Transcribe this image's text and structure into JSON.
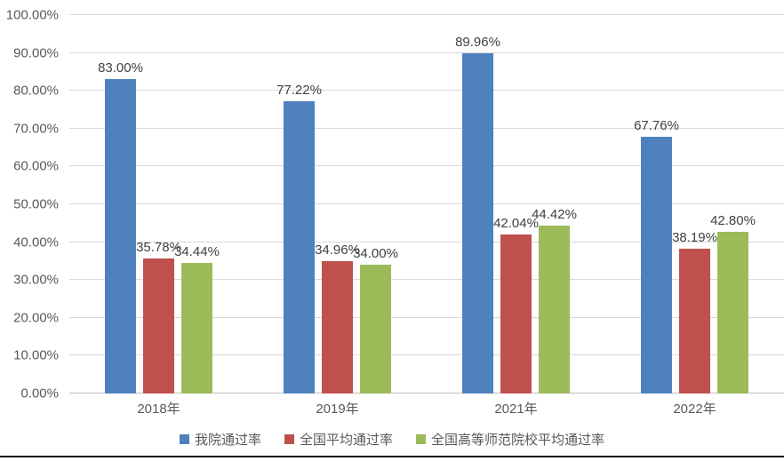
{
  "chart_data": {
    "type": "bar",
    "title": "",
    "categories": [
      "2018年",
      "2019年",
      "2021年",
      "2022年"
    ],
    "series": [
      {
        "name": "我院通过率",
        "color": "#4E81BD",
        "values": [
          83.0,
          77.22,
          89.96,
          67.76
        ],
        "data_labels": [
          "83.00%",
          "77.22%",
          "89.96%",
          "67.76%"
        ]
      },
      {
        "name": "全国平均通过率",
        "color": "#C0504D",
        "values": [
          35.78,
          34.96,
          42.04,
          38.19
        ],
        "data_labels": [
          "35.78%",
          "34.96%",
          "42.04%",
          "38.19%"
        ]
      },
      {
        "name": "全国高等师范院校平均通过率",
        "color": "#9BBB59",
        "values": [
          34.44,
          34.0,
          44.42,
          42.8
        ],
        "data_labels": [
          "34.44%",
          "34.00%",
          "44.42%",
          "42.80%"
        ]
      }
    ],
    "y_axis": {
      "min": 0,
      "max": 100,
      "step": 10,
      "tick_labels": [
        "0.00%",
        "10.00%",
        "20.00%",
        "30.00%",
        "40.00%",
        "50.00%",
        "60.00%",
        "70.00%",
        "80.00%",
        "90.00%",
        "100.00%"
      ]
    },
    "xlabel": "",
    "ylabel": "",
    "grid": true,
    "legend": {
      "position": "bottom",
      "entries": [
        "我院通过率",
        "全国平均通过率",
        "全国高等师范院校平均通过率"
      ]
    }
  },
  "styles": {
    "plot_bg": "#FFFFFF",
    "gridline_color": "#D9D9D9",
    "axis_line_color": "#BFBFBF",
    "tick_text_color": "#595959",
    "data_label_color": "#404040",
    "legend_text_color": "#595959",
    "bottom_rule_color": "#0A0A0A"
  }
}
